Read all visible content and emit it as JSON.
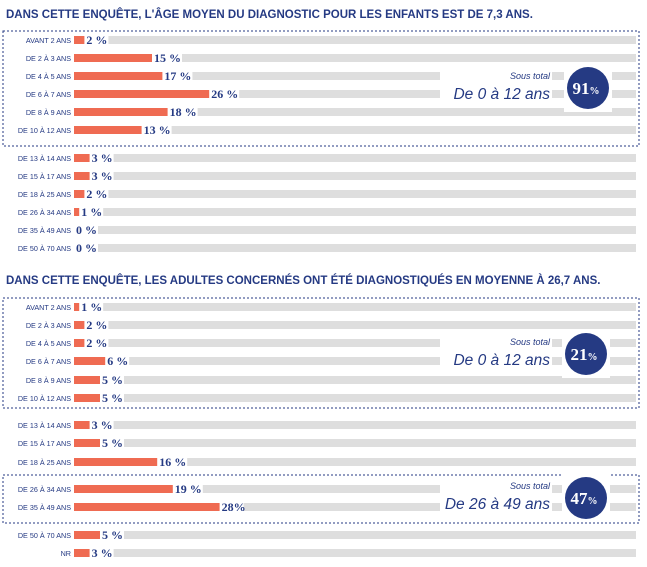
{
  "chart_data": [
    {
      "type": "bar",
      "title": "DANS CETTE ENQUÊTE, L'ÂGE MOYEN DU DIAGNOSTIC POUR LES ENFANTS EST DE 7,3 ANS.",
      "categories": [
        "AVANT 2 ANS",
        "DE 2 À 3 ANS",
        "DE 4 À 5 ANS",
        "DE 6 À 7 ANS",
        "DE 8 À 9 ANS",
        "DE 10 À 12 ANS",
        "DE 13 À 14 ANS",
        "DE 15 À 17 ANS",
        "DE 18 À 25 ANS",
        "DE 26 À 34 ANS",
        "DE 35 À 49 ANS",
        "DE 50 À 70 ANS"
      ],
      "values": [
        2,
        15,
        17,
        26,
        18,
        13,
        3,
        3,
        2,
        1,
        0,
        0
      ],
      "value_labels": [
        "2 %",
        "15 %",
        "17 %",
        "26 %",
        "18 %",
        "13 %",
        "3 %",
        "3 %",
        "2 %",
        "1 %",
        "0 %",
        "0 %"
      ],
      "xlim": [
        0,
        100
      ],
      "bar_color": "#ef6b52",
      "track_color": "#dedede",
      "subtotals": [
        {
          "label": "Sous total",
          "range": "De 0 à 12 ans",
          "value": "91",
          "unit": "%",
          "from": 0,
          "to": 5
        }
      ]
    },
    {
      "type": "bar",
      "title": "DANS CETTE ENQUÊTE, LES ADULTES CONCERNÉS ONT ÉTÉ DIAGNOSTIQUÉS EN MOYENNE À 26,7 ANS.",
      "categories": [
        "AVANT 2 ANS",
        "DE 2 À 3 ANS",
        "DE 4 À 5 ANS",
        "DE 6 À 7 ANS",
        "DE 8 À 9 ANS",
        "DE 10 À 12 ANS",
        "DE 13 À 14 ANS",
        "DE 15 À 17 ANS",
        "DE 18 À 25 ANS",
        "DE 26 À 34 ANS",
        "DE 35 À 49 ANS",
        "DE 50 À 70 ANS",
        "NR"
      ],
      "values": [
        1,
        2,
        2,
        6,
        5,
        5,
        3,
        5,
        16,
        19,
        28,
        5,
        3
      ],
      "value_labels": [
        "1 %",
        "2 %",
        "2 %",
        "6 %",
        "5 %",
        "5 %",
        "3 %",
        "5 %",
        "16 %",
        "19 %",
        "28%",
        "5 %",
        "3 %"
      ],
      "xlim": [
        0,
        100
      ],
      "bar_color": "#ef6b52",
      "track_color": "#dedede",
      "subtotals": [
        {
          "label": "Sous total",
          "range": "De 0 à 12 ans",
          "value": "21",
          "unit": "%",
          "from": 0,
          "to": 5
        },
        {
          "label": "Sous total",
          "range": "De 26 à 49 ans",
          "value": "47",
          "unit": "%",
          "from": 9,
          "to": 10
        }
      ]
    }
  ],
  "colors": {
    "text": "#253a83",
    "accent": "#253a83",
    "bar": "#ef6b52",
    "track": "#dedede"
  }
}
